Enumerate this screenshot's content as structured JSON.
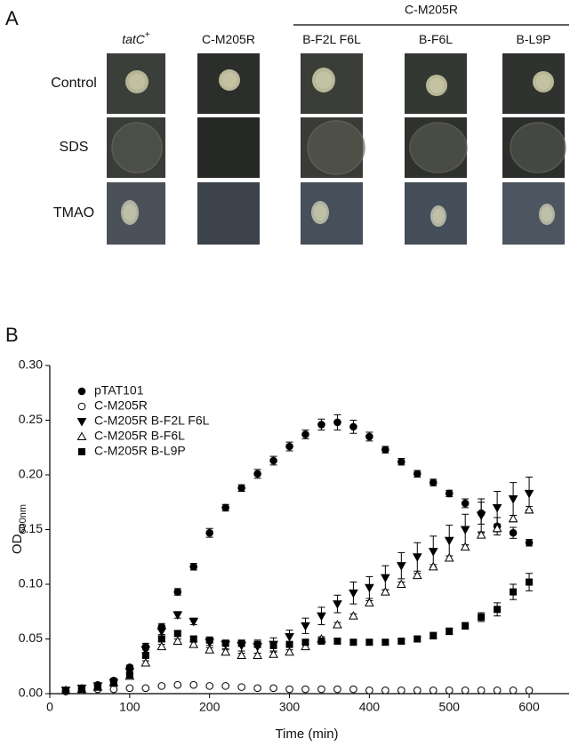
{
  "panel_a": {
    "label": "A",
    "group_header": "C-M205R",
    "columns": [
      {
        "label": "tatC",
        "sup": "+"
      },
      {
        "label": "C-M205R"
      },
      {
        "label": "B-F2L F6L"
      },
      {
        "label": "B-F6L"
      },
      {
        "label": "B-L9P"
      }
    ],
    "rows": [
      "Control",
      "SDS",
      "TMAO"
    ]
  },
  "chart_data": {
    "type": "scatter",
    "panel_label": "B",
    "xlabel": "Time (min)",
    "ylabel": "OD",
    "ylabel_sub": "600nm",
    "xlim": [
      0,
      650
    ],
    "ylim": [
      0,
      0.3
    ],
    "xticks": [
      0,
      100,
      200,
      300,
      400,
      500,
      600
    ],
    "yticks": [
      {
        "value": 0,
        "label": "0.00"
      },
      {
        "value": 0.05,
        "label": "0.05"
      },
      {
        "value": 0.1,
        "label": "0.10"
      },
      {
        "value": 0.15,
        "label": "0.15"
      },
      {
        "value": 0.2,
        "label": "0.20"
      },
      {
        "value": 0.25,
        "label": "0.25"
      },
      {
        "value": 0.3,
        "label": "0.30"
      }
    ],
    "legend": "upper left",
    "x": [
      20,
      40,
      60,
      80,
      100,
      120,
      140,
      160,
      180,
      200,
      220,
      240,
      260,
      280,
      300,
      320,
      340,
      360,
      380,
      400,
      420,
      440,
      460,
      480,
      500,
      520,
      540,
      560,
      580,
      600
    ],
    "series": [
      {
        "name": "pTAT101",
        "color": "#000000",
        "marker": "circle",
        "filled": true,
        "values": [
          0.003,
          0.005,
          0.008,
          0.012,
          0.024,
          0.043,
          0.061,
          0.093,
          0.116,
          0.147,
          0.17,
          0.188,
          0.201,
          0.213,
          0.226,
          0.237,
          0.246,
          0.248,
          0.244,
          0.235,
          0.223,
          0.212,
          0.201,
          0.193,
          0.183,
          0.174,
          0.165,
          0.153,
          0.147,
          0.138
        ],
        "errors": [
          0.001,
          0.001,
          0.001,
          0.002,
          0.002,
          0.003,
          0.003,
          0.003,
          0.003,
          0.004,
          0.003,
          0.003,
          0.004,
          0.004,
          0.004,
          0.004,
          0.005,
          0.007,
          0.006,
          0.004,
          0.003,
          0.003,
          0.003,
          0.003,
          0.003,
          0.004,
          0.01,
          0.008,
          0.005,
          0.003
        ]
      },
      {
        "name": "C-M205R",
        "color": "#000000",
        "marker": "circle",
        "filled": false,
        "values": [
          0.002,
          0.003,
          0.004,
          0.004,
          0.005,
          0.005,
          0.007,
          0.008,
          0.008,
          0.007,
          0.007,
          0.006,
          0.005,
          0.005,
          0.004,
          0.004,
          0.004,
          0.004,
          0.004,
          0.003,
          0.003,
          0.003,
          0.003,
          0.003,
          0.003,
          0.003,
          0.003,
          0.003,
          0.003,
          0.003
        ],
        "errors": [
          0.001,
          0.001,
          0.001,
          0.001,
          0.001,
          0.001,
          0.001,
          0.001,
          0.001,
          0.001,
          0.001,
          0.001,
          0.001,
          0.001,
          0.001,
          0.001,
          0.001,
          0.001,
          0.001,
          0.001,
          0.001,
          0.001,
          0.001,
          0.001,
          0.001,
          0.001,
          0.001,
          0.001,
          0.001,
          0.001
        ]
      },
      {
        "name": "C-M205R B-F2L F6L",
        "color": "#000000",
        "marker": "triangle-down",
        "filled": true,
        "values": [
          0.003,
          0.005,
          0.007,
          0.01,
          0.02,
          0.04,
          0.057,
          0.072,
          0.066,
          0.047,
          0.045,
          0.044,
          0.043,
          0.045,
          0.052,
          0.062,
          0.071,
          0.082,
          0.092,
          0.097,
          0.106,
          0.117,
          0.125,
          0.13,
          0.14,
          0.15,
          0.163,
          0.17,
          0.178,
          0.183
        ],
        "errors": [
          0.001,
          0.001,
          0.001,
          0.002,
          0.002,
          0.003,
          0.003,
          0.003,
          0.003,
          0.003,
          0.004,
          0.005,
          0.006,
          0.006,
          0.006,
          0.007,
          0.008,
          0.008,
          0.01,
          0.01,
          0.011,
          0.012,
          0.013,
          0.014,
          0.014,
          0.014,
          0.015,
          0.015,
          0.015,
          0.015
        ]
      },
      {
        "name": "C-M205R B-F6L",
        "color": "#000000",
        "marker": "triangle-up",
        "filled": false,
        "values": [
          0.003,
          0.004,
          0.006,
          0.01,
          0.016,
          0.028,
          0.043,
          0.048,
          0.045,
          0.04,
          0.038,
          0.035,
          0.035,
          0.036,
          0.038,
          0.043,
          0.05,
          0.063,
          0.071,
          0.083,
          0.093,
          0.1,
          0.108,
          0.116,
          0.124,
          0.134,
          0.145,
          0.151,
          0.16,
          0.168
        ],
        "errors": [
          0.001,
          0.001,
          0.001,
          0.001,
          0.002,
          0.002,
          0.002,
          0.002,
          0.002,
          0.002,
          0.002,
          0.002,
          0.002,
          0.002,
          0.002,
          0.002,
          0.002,
          0.002,
          0.002,
          0.002,
          0.002,
          0.002,
          0.002,
          0.002,
          0.002,
          0.002,
          0.002,
          0.003,
          0.003,
          0.003
        ]
      },
      {
        "name": "C-M205R B-L9P",
        "color": "#000000",
        "marker": "square",
        "filled": true,
        "values": [
          0.003,
          0.004,
          0.006,
          0.01,
          0.017,
          0.035,
          0.05,
          0.055,
          0.05,
          0.049,
          0.046,
          0.046,
          0.045,
          0.044,
          0.045,
          0.047,
          0.048,
          0.048,
          0.047,
          0.047,
          0.047,
          0.048,
          0.05,
          0.053,
          0.057,
          0.062,
          0.07,
          0.077,
          0.093,
          0.102
        ],
        "errors": [
          0.001,
          0.001,
          0.001,
          0.001,
          0.002,
          0.002,
          0.002,
          0.002,
          0.002,
          0.002,
          0.002,
          0.002,
          0.002,
          0.002,
          0.002,
          0.002,
          0.002,
          0.002,
          0.002,
          0.002,
          0.002,
          0.002,
          0.002,
          0.003,
          0.003,
          0.003,
          0.004,
          0.006,
          0.007,
          0.008
        ]
      }
    ]
  }
}
